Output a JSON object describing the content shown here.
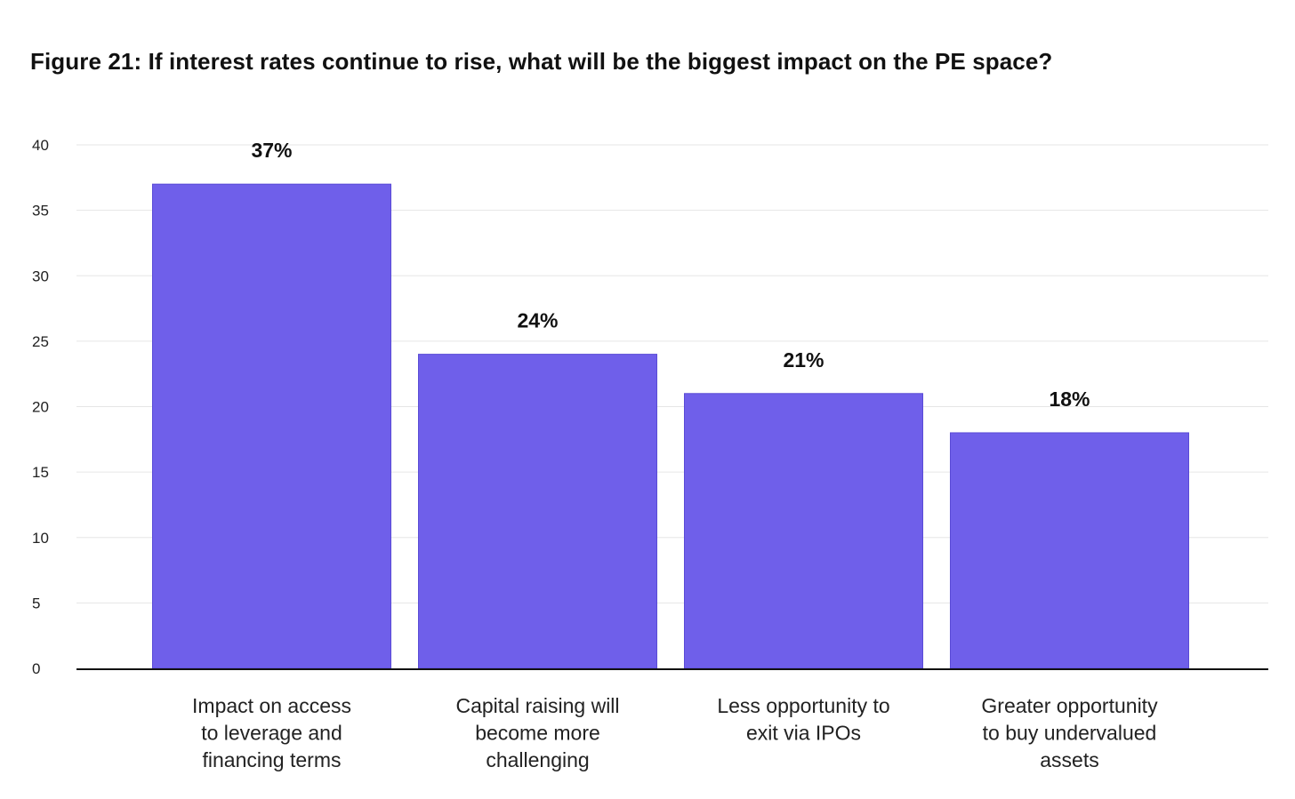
{
  "title": "Figure 21: If interest rates continue to rise, what will be the biggest impact on the PE space?",
  "chart_data": {
    "type": "bar",
    "title": "Figure 21: If interest rates continue to rise, what will be the biggest impact on the PE space?",
    "xlabel": "",
    "ylabel": "",
    "categories": [
      "Impact on access to leverage and financing terms",
      "Capital raising will become more challenging",
      "Less opportunity to exit via IPOs",
      "Greater opportunity to buy undervalued assets"
    ],
    "category_lines": [
      [
        "Impact on access",
        "to leverage and",
        "financing terms"
      ],
      [
        "Capital raising will",
        "become more",
        "challenging"
      ],
      [
        "Less opportunity to",
        "exit via IPOs"
      ],
      [
        "Greater opportunity",
        "to buy undervalued",
        "assets"
      ]
    ],
    "values": [
      37,
      24,
      21,
      18
    ],
    "data_labels": [
      "37%",
      "24%",
      "21%",
      "18%"
    ],
    "ylim": [
      0,
      40
    ],
    "yticks": [
      0,
      5,
      10,
      15,
      20,
      25,
      30,
      35,
      40
    ],
    "grid": true,
    "legend": "none",
    "bar_color": "#6f5fea",
    "bar_edge_color": "#5a4bd6"
  }
}
